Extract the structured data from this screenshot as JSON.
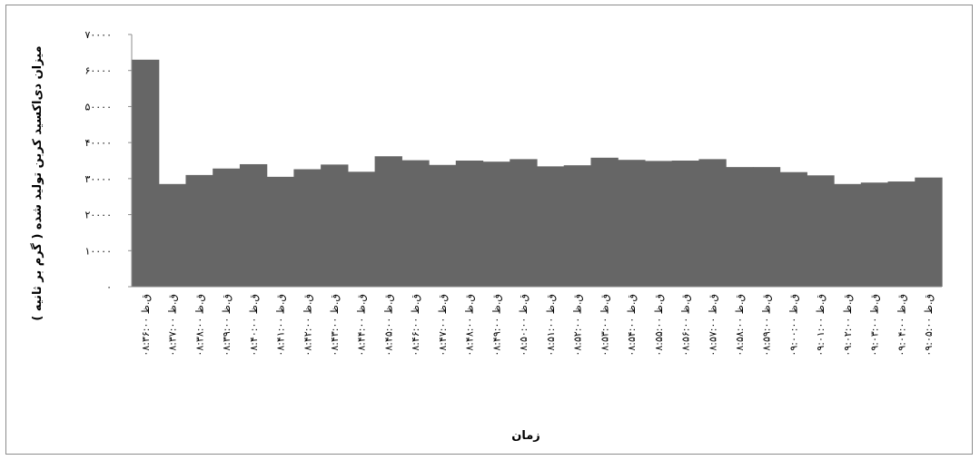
{
  "chart_data": {
    "type": "bar",
    "xlabel": "زمان",
    "ylabel": "میزان دی‌اکسید کربن تولید شده ( گرم بر ثانیه )",
    "ylim": [
      0,
      70000
    ],
    "yticks": [
      0,
      10000,
      20000,
      30000,
      40000,
      50000,
      60000,
      70000
    ],
    "ytick_labels": [
      "۰",
      "۱۰۰۰۰",
      "۲۰۰۰۰",
      "۳۰۰۰۰",
      "۴۰۰۰۰",
      "۵۰۰۰۰",
      "۶۰۰۰۰",
      "۷۰۰۰۰"
    ],
    "grid": false,
    "legend": "none",
    "bar_color": "#666666",
    "categories": [
      "۰۸:۳۶:۰۰ ق.ظ",
      "۰۸:۳۷:۰۰ ق.ظ",
      "۰۸:۳۸:۰۰ ق.ظ",
      "۰۸:۳۹:۰۰ ق.ظ",
      "۰۸:۴۰:۰۰ ق.ظ",
      "۰۸:۴۱:۰۰ ق.ظ",
      "۰۸:۴۲:۰۰ ق.ظ",
      "۰۸:۴۳:۰۰ ق.ظ",
      "۰۸:۴۴:۰۰ ق.ظ",
      "۰۸:۴۵:۰۰ ق.ظ",
      "۰۸:۴۶:۰۰ ق.ظ",
      "۰۸:۴۷:۰۰ ق.ظ",
      "۰۸:۴۸:۰۰ ق.ظ",
      "۰۸:۴۹:۰۰ ق.ظ",
      "۰۸:۵۰:۰۰ ق.ظ",
      "۰۸:۵۱:۰۰ ق.ظ",
      "۰۸:۵۲:۰۰ ق.ظ",
      "۰۸:۵۳:۰۰ ق.ظ",
      "۰۸:۵۴:۰۰ ق.ظ",
      "۰۸:۵۵:۰۰ ق.ظ",
      "۰۸:۵۶:۰۰ ق.ظ",
      "۰۸:۵۷:۰۰ ق.ظ",
      "۰۸:۵۸:۰۰ ق.ظ",
      "۰۸:۵۹:۰۰ ق.ظ",
      "۰۹:۰۰:۰۰ ق.ظ",
      "۰۹:۰۱:۰۰ ق.ظ",
      "۰۹:۰۲:۰۰ ق.ظ",
      "۰۹:۰۳:۰۰ ق.ظ",
      "۰۹:۰۴:۰۰ ق.ظ",
      "۰۹:۰۵:۰۰ ق.ظ"
    ],
    "values": [
      63000,
      28500,
      31000,
      32800,
      34000,
      30500,
      32600,
      33900,
      31900,
      36200,
      35100,
      33800,
      35000,
      34700,
      35400,
      33400,
      33700,
      35800,
      35200,
      34900,
      35000,
      35400,
      33200,
      33200,
      31800,
      30900,
      28500,
      28900,
      29200,
      30300
    ]
  }
}
